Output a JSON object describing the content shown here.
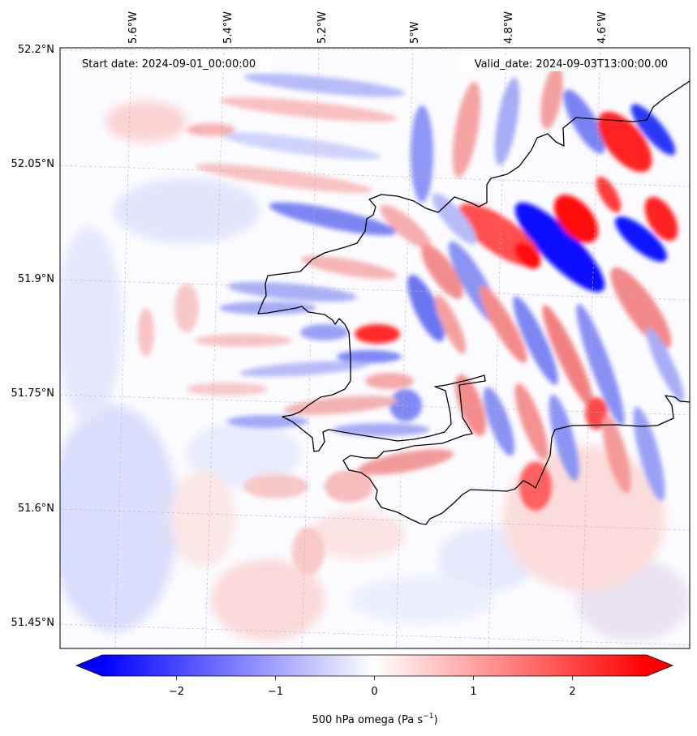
{
  "map": {
    "start_label": "Start date: 2024-09-01_00:00:00",
    "valid_label": "Valid_date: 2024-09-03T13:00:00.00",
    "lon_labels": [
      "5.6°W",
      "5.4°W",
      "5.2°W",
      "5°W",
      "4.8°W",
      "4.6°W"
    ],
    "lat_labels": [
      "52.2°N",
      "52.05°N",
      "51.9°N",
      "51.75°N",
      "51.6°N",
      "51.45°N"
    ]
  },
  "colorbar": {
    "ticks": [
      "−2",
      "−1",
      "0",
      "1",
      "2"
    ],
    "tick_values": [
      -2,
      -1,
      0,
      1,
      2
    ],
    "range": [
      -2.75,
      2.75
    ],
    "min_color": "#0000ff",
    "mid_color": "#ffffff",
    "max_color": "#ff0000",
    "label_main": "500 hPa omega (Pa s",
    "label_sup": "−1",
    "label_end": ")"
  }
}
